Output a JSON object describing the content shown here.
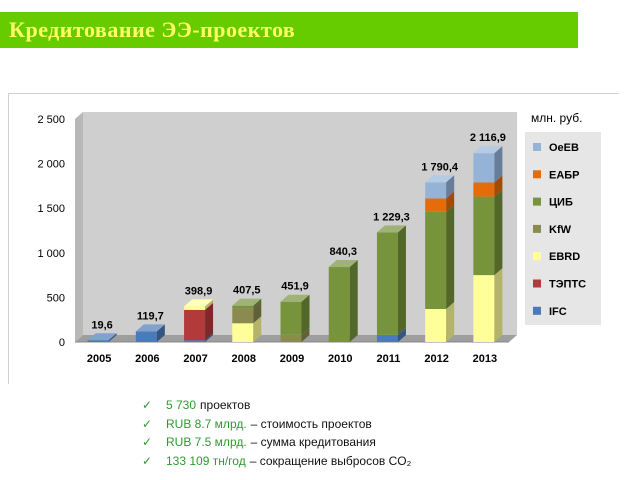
{
  "header": {
    "title": "Кредитование ЭЭ-проектов"
  },
  "colors": {
    "title_bg": "#66cc00",
    "title_text": "#ffff66",
    "accent_green": "#2e9a2e"
  },
  "chart_data": {
    "type": "bar",
    "stacked": true,
    "style": "3d",
    "categories": [
      "2005",
      "2006",
      "2007",
      "2008",
      "2009",
      "2010",
      "2011",
      "2012",
      "2013"
    ],
    "y_ticks": [
      "0",
      "500",
      "1 000",
      "1 500",
      "2 000",
      "2 500"
    ],
    "ylim": [
      0,
      2500
    ],
    "grid": false,
    "legend_title": "млн. руб.",
    "legend_position": "right",
    "totals": [
      "19,6",
      "119,7",
      "398,9",
      "407,5",
      "451,9",
      "840,3",
      "1 229,3",
      "1 790,4",
      "2 116,9"
    ],
    "series": [
      {
        "name": "IFC",
        "color": "#4a7ab8",
        "values": [
          19.6,
          119.7,
          20,
          0,
          0,
          0,
          80,
          0,
          0
        ]
      },
      {
        "name": "ТЭПТС",
        "color": "#b23a3a",
        "values": [
          0,
          0,
          340,
          0,
          0,
          0,
          0,
          0,
          0
        ]
      },
      {
        "name": "EBRD",
        "color": "#ffff99",
        "values": [
          0,
          0,
          38.9,
          210,
          0,
          0,
          0,
          370,
          750
        ]
      },
      {
        "name": "KfW",
        "color": "#8b8b50",
        "values": [
          0,
          0,
          0,
          170,
          80,
          0,
          0,
          0,
          0
        ]
      },
      {
        "name": "ЦИБ",
        "color": "#77933c",
        "values": [
          0,
          0,
          0,
          27.5,
          371.9,
          840.3,
          1149.3,
          1090.4,
          880
        ]
      },
      {
        "name": "ЕАБР",
        "color": "#e46c0a",
        "values": [
          0,
          0,
          0,
          0,
          0,
          0,
          0,
          150,
          160
        ]
      },
      {
        "name": "OeEB",
        "color": "#95b3d7",
        "values": [
          0,
          0,
          0,
          0,
          0,
          0,
          0,
          180,
          326.9
        ]
      }
    ]
  },
  "summary": {
    "items": [
      {
        "accent": "5 730",
        "text": "проектов"
      },
      {
        "accent": "RUB 8.7 млрд.",
        "text": "– стоимость проектов"
      },
      {
        "accent": "RUB 7.5 млрд.",
        "text": "– сумма кредитования"
      },
      {
        "accent": "133 109 тн/год",
        "text": "– сокращение выбросов CO₂"
      }
    ]
  }
}
